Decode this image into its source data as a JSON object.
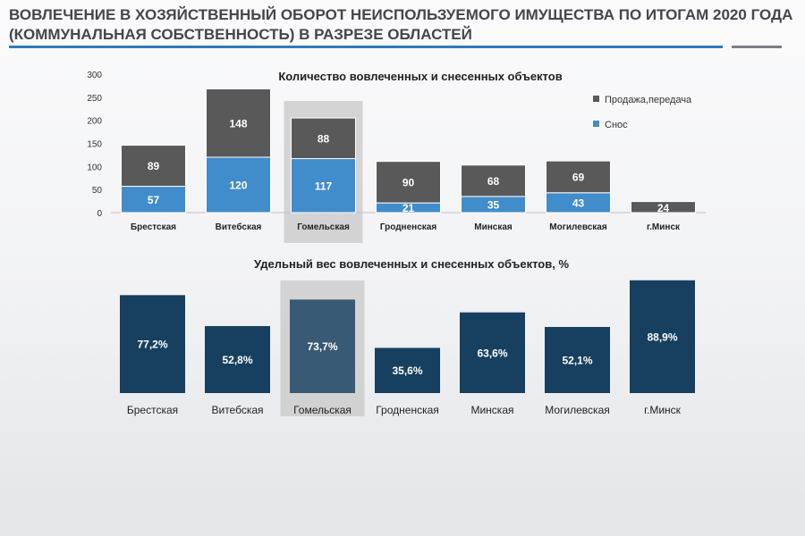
{
  "header": {
    "title_line1": "ВОВЛЕЧЕНИЕ В ХОЗЯЙСТВЕННЫЙ ОБОРОТ НЕИСПОЛЬЗУЕМОГО ИМУЩЕСТВА ПО ИТОГАМ 2020 ГОДА",
    "title_line2": "(КОММУНАЛЬНАЯ СОБСТВЕННОСТЬ) В РАЗРЕЗЕ ОБЛАСТЕЙ"
  },
  "colors": {
    "sale": "#595959",
    "demolition": "#418ccb",
    "share": "#173f5f",
    "highlight": "#c8c8c8",
    "axis_text": "#333333"
  },
  "chart_data": [
    {
      "type": "bar",
      "stacked": true,
      "title": "Количество вовлеченных и снесенных объектов",
      "categories": [
        "Брестская",
        "Витебская",
        "Гомельская",
        "Гродненская",
        "Минская",
        "Могилевская",
        "г.Минск"
      ],
      "highlight_category": "Гомельская",
      "series": [
        {
          "name": "Снос",
          "values": [
            57,
            120,
            117,
            21,
            35,
            43,
            0
          ]
        },
        {
          "name": "Продажа,передача",
          "values": [
            89,
            148,
            88,
            90,
            68,
            69,
            24
          ]
        }
      ],
      "yticks": [
        0,
        50,
        100,
        150,
        200,
        250,
        300
      ],
      "ylim": [
        0,
        300
      ],
      "legend_position": "top-right",
      "xlabel": "",
      "ylabel": ""
    },
    {
      "type": "bar",
      "title": "Удельный вес вовлеченных и снесенных объектов, %",
      "categories": [
        "Брестская",
        "Витебская",
        "Гомельская",
        "Гродненская",
        "Минская",
        "Могилевская",
        "г.Минск"
      ],
      "highlight_category": "Гомельская",
      "values": [
        77.2,
        52.8,
        73.7,
        35.6,
        63.6,
        52.1,
        88.9
      ],
      "labels": [
        "77,2%",
        "52,8%",
        "73,7%",
        "35,6%",
        "63,6%",
        "52,1%",
        "88,9%"
      ],
      "ylim": [
        0,
        100
      ],
      "xlabel": "",
      "ylabel": ""
    }
  ]
}
